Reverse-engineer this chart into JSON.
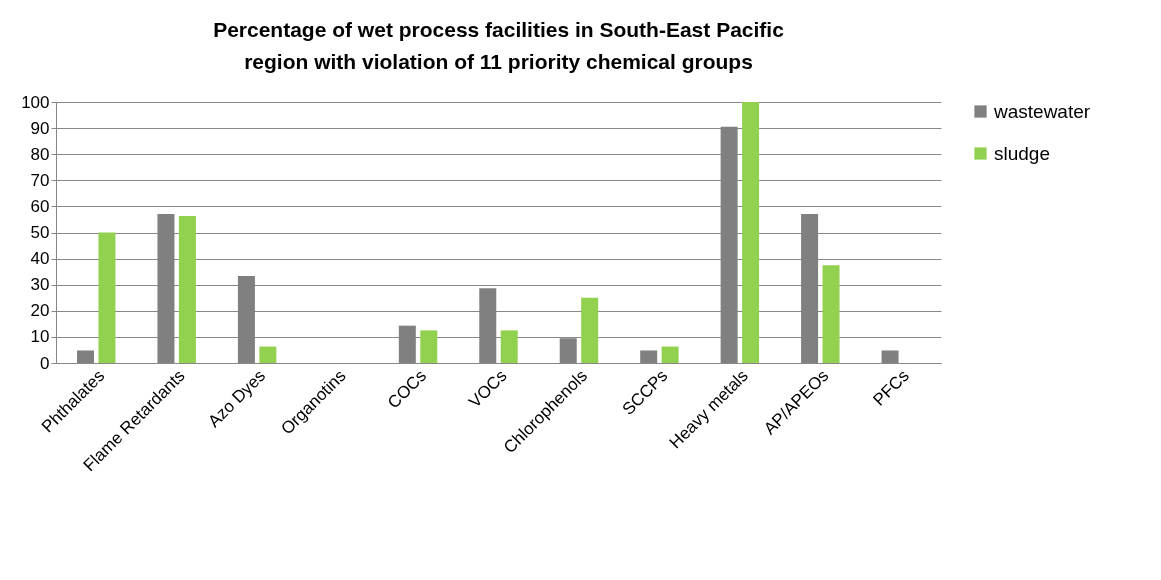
{
  "chart_data": {
    "type": "bar",
    "title": "Percentage of wet process facilities in South-East Pacific region with violation of 11 priority chemical groups",
    "categories": [
      "Phthalates",
      "Flame Retardants",
      "Azo Dyes",
      "Organotins",
      "COCs",
      "VOCs",
      "Chlorophenols",
      "SCCPs",
      "Heavy metals",
      "AP/APEOs",
      "PFCs"
    ],
    "series": [
      {
        "name": "wastewater",
        "color": "#808080",
        "values": [
          4.8,
          57.1,
          33.3,
          0,
          14.3,
          28.6,
          9.5,
          4.8,
          90.5,
          57.1,
          4.8
        ]
      },
      {
        "name": "sludge",
        "color": "#92d050",
        "values": [
          50,
          56.3,
          6.3,
          0,
          12.5,
          12.5,
          25,
          6.3,
          100,
          37.5,
          0
        ]
      }
    ],
    "ylim": [
      0,
      100
    ],
    "yticks": [
      0,
      10,
      20,
      30,
      40,
      50,
      60,
      70,
      80,
      90,
      100
    ],
    "grid": "y",
    "legend": "right"
  }
}
